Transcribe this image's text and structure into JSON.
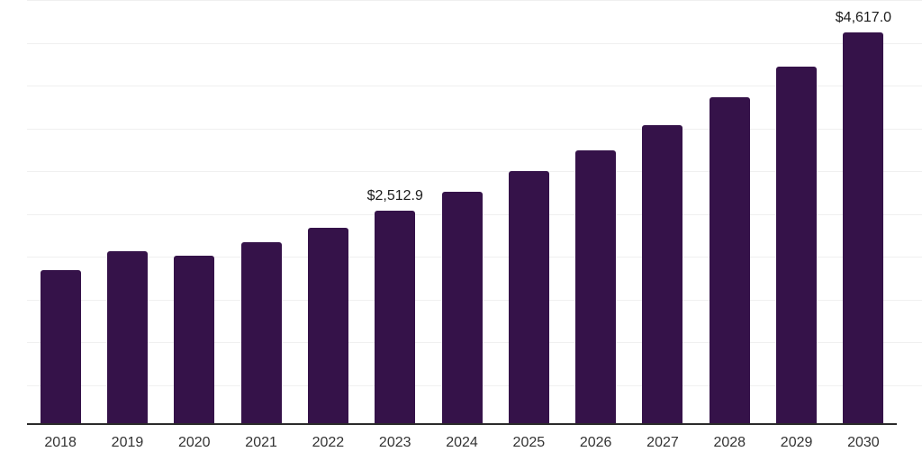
{
  "chart": {
    "background_color": "#ffffff",
    "bar_color": "#351249",
    "gridline_color": "#f0f0f0",
    "axis_line_color": "#2b2b2b",
    "x_label_color": "#333333",
    "data_label_color": "#1c1c1c"
  },
  "chart_data": {
    "type": "bar",
    "title": "",
    "xlabel": "",
    "ylabel": "",
    "categories": [
      "2018",
      "2019",
      "2020",
      "2021",
      "2022",
      "2023",
      "2024",
      "2025",
      "2026",
      "2027",
      "2028",
      "2029",
      "2030"
    ],
    "values": [
      1810,
      2030,
      1975,
      2134,
      2304,
      2512.9,
      2736,
      2976,
      3224,
      3521,
      3850,
      4211,
      4617
    ],
    "point_labels": [
      "",
      "",
      "",
      "",
      "",
      "$2,512.9",
      "",
      "",
      "",
      "",
      "",
      "",
      "$4,617.0"
    ],
    "ylim": [
      0,
      5000
    ],
    "gridline_step": 500,
    "grid": true,
    "legend_position": "none",
    "y_axis_tick_labels_visible": false
  }
}
